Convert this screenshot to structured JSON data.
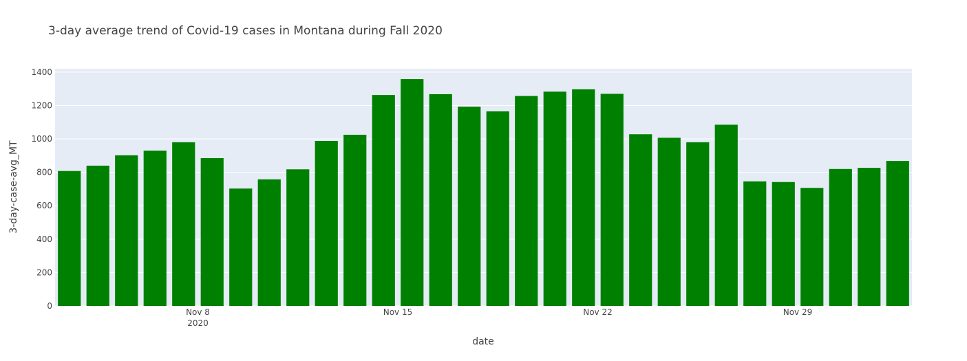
{
  "chart_data": {
    "type": "bar",
    "title": "3-day average trend of Covid-19 cases in Montana during Fall 2020",
    "xlabel": "date",
    "ylabel": "3-day-case-avg_MT",
    "ylim": [
      0,
      1420
    ],
    "grid": true,
    "legend": "none",
    "colors": {
      "bar": "#008000",
      "plot_background": "#e5ecf6",
      "grid": "#ffffff",
      "text": "#444444"
    },
    "y_ticks": [
      0,
      200,
      400,
      600,
      800,
      1000,
      1200,
      1400
    ],
    "x_ticks": [
      {
        "date": "2020-11-08",
        "label": "Nov 8",
        "sublabel": "2020"
      },
      {
        "date": "2020-11-15",
        "label": "Nov 15",
        "sublabel": ""
      },
      {
        "date": "2020-11-22",
        "label": "Nov 22",
        "sublabel": ""
      },
      {
        "date": "2020-11-29",
        "label": "Nov 29",
        "sublabel": ""
      }
    ],
    "x": [
      "2020-11-03",
      "2020-11-04",
      "2020-11-05",
      "2020-11-06",
      "2020-11-07",
      "2020-11-08",
      "2020-11-09",
      "2020-11-10",
      "2020-11-11",
      "2020-11-12",
      "2020-11-13",
      "2020-11-14",
      "2020-11-15",
      "2020-11-16",
      "2020-11-17",
      "2020-11-18",
      "2020-11-19",
      "2020-11-20",
      "2020-11-21",
      "2020-11-22",
      "2020-11-23",
      "2020-11-24",
      "2020-11-25",
      "2020-11-26",
      "2020-11-27",
      "2020-11-28",
      "2020-11-29",
      "2020-11-30",
      "2020-12-01",
      "2020-12-02"
    ],
    "values": [
      808,
      840,
      902,
      930,
      980,
      885,
      703,
      758,
      818,
      988,
      1025,
      1263,
      1358,
      1268,
      1193,
      1165,
      1257,
      1283,
      1297,
      1270,
      1028,
      1007,
      980,
      1085,
      746,
      742,
      707,
      820,
      827,
      868
    ]
  }
}
